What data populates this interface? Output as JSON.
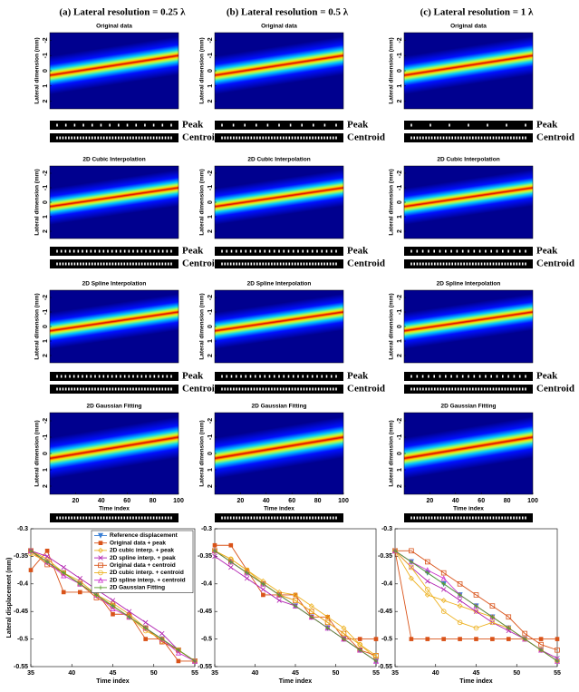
{
  "columns": [
    {
      "header": "(a) Lateral resolution = 0.25 λ"
    },
    {
      "header": "(b) Lateral resolution = 0.5 λ"
    },
    {
      "header": "(c) Lateral resolution = 1 λ"
    }
  ],
  "panel_titles": [
    "Original data",
    "2D Cubic Interpolation",
    "2D Spline Interpolation",
    "2D Gaussian Fitting"
  ],
  "strip_labels": [
    "Peak",
    "Centroid"
  ],
  "heatmap_axes": {
    "ylabel": "Lateral dimension (mm)",
    "ylim": [
      -2.5,
      2.5
    ],
    "yticks": [
      -2,
      -1,
      0,
      1,
      2
    ],
    "xlabel": "Time index",
    "xlim": [
      0,
      100
    ],
    "xticks": [
      20,
      40,
      60,
      80,
      100
    ]
  },
  "chart_data": [
    {
      "type": "line",
      "ylabel": "Lateral displacement (mm)",
      "xlabel": "Time index",
      "legend": "top-right",
      "x": [
        35,
        37,
        39,
        41,
        43,
        45,
        47,
        49,
        51,
        53,
        55
      ],
      "xlim": [
        35,
        55
      ],
      "xticks": [
        35,
        40,
        45,
        50,
        55
      ],
      "ylim": [
        -0.55,
        -0.3
      ],
      "yticks": [
        -0.3,
        -0.35,
        -0.4,
        -0.45,
        -0.5,
        -0.55
      ],
      "series": [
        {
          "name": "Reference displacement",
          "color": "#3a7fd5",
          "marker": "v",
          "values": [
            -0.34,
            -0.36,
            -0.38,
            -0.4,
            -0.42,
            -0.44,
            -0.46,
            -0.48,
            -0.5,
            -0.52,
            -0.54
          ]
        },
        {
          "name": "Original data + peak",
          "color": "#d95319",
          "marker": "s",
          "values": [
            -0.375,
            -0.34,
            -0.415,
            -0.415,
            -0.415,
            -0.455,
            -0.455,
            -0.5,
            -0.5,
            -0.54,
            -0.54
          ]
        },
        {
          "name": "2D cubic interp. + peak",
          "color": "#edb120",
          "marker": "d",
          "values": [
            -0.34,
            -0.355,
            -0.38,
            -0.395,
            -0.42,
            -0.435,
            -0.455,
            -0.48,
            -0.505,
            -0.52,
            -0.54
          ]
        },
        {
          "name": "2D spline interp. + peak",
          "color": "#b01fb0",
          "marker": "x",
          "values": [
            -0.34,
            -0.35,
            -0.37,
            -0.39,
            -0.41,
            -0.43,
            -0.45,
            -0.47,
            -0.49,
            -0.52,
            -0.54
          ]
        },
        {
          "name": "Original data + centroid",
          "color": "#d95319",
          "marker": "S",
          "values": [
            -0.34,
            -0.365,
            -0.38,
            -0.4,
            -0.425,
            -0.44,
            -0.46,
            -0.48,
            -0.505,
            -0.52,
            -0.54
          ]
        },
        {
          "name": "2D cubic interp. + centroid",
          "color": "#edb120",
          "marker": "o",
          "values": [
            -0.345,
            -0.36,
            -0.38,
            -0.4,
            -0.42,
            -0.44,
            -0.46,
            -0.485,
            -0.5,
            -0.52,
            -0.54
          ]
        },
        {
          "name": "2D spline interp. + centroid",
          "color": "#cc33cc",
          "marker": "^",
          "values": [
            -0.34,
            -0.36,
            -0.385,
            -0.4,
            -0.42,
            -0.445,
            -0.46,
            -0.48,
            -0.5,
            -0.525,
            -0.54
          ]
        },
        {
          "name": "2D Gaussian Fitting",
          "color": "#5a9e2a",
          "marker": "+",
          "values": [
            -0.34,
            -0.36,
            -0.38,
            -0.4,
            -0.42,
            -0.44,
            -0.46,
            -0.48,
            -0.5,
            -0.52,
            -0.54
          ]
        }
      ]
    },
    {
      "type": "line",
      "xlabel": "Time index",
      "x": [
        35,
        37,
        39,
        41,
        43,
        45,
        47,
        49,
        51,
        53,
        55
      ],
      "xlim": [
        35,
        55
      ],
      "xticks": [
        35,
        40,
        45,
        50,
        55
      ],
      "ylim": [
        -0.55,
        -0.3
      ],
      "yticks": [
        -0.3,
        -0.35,
        -0.4,
        -0.45,
        -0.5,
        -0.55
      ],
      "series": [
        {
          "color": "#3a7fd5",
          "marker": "v",
          "values": [
            -0.34,
            -0.36,
            -0.38,
            -0.4,
            -0.42,
            -0.44,
            -0.46,
            -0.48,
            -0.5,
            -0.52,
            -0.54
          ]
        },
        {
          "color": "#d95319",
          "marker": "s",
          "values": [
            -0.33,
            -0.33,
            -0.375,
            -0.42,
            -0.42,
            -0.42,
            -0.46,
            -0.46,
            -0.5,
            -0.5,
            -0.5
          ]
        },
        {
          "color": "#edb120",
          "marker": "d",
          "values": [
            -0.34,
            -0.355,
            -0.375,
            -0.395,
            -0.415,
            -0.42,
            -0.44,
            -0.46,
            -0.48,
            -0.51,
            -0.535
          ]
        },
        {
          "color": "#b01fb0",
          "marker": "x",
          "values": [
            -0.35,
            -0.37,
            -0.39,
            -0.41,
            -0.43,
            -0.44,
            -0.46,
            -0.48,
            -0.5,
            -0.52,
            -0.54
          ]
        },
        {
          "color": "#d95319",
          "marker": "S",
          "values": [
            -0.34,
            -0.36,
            -0.38,
            -0.4,
            -0.42,
            -0.43,
            -0.45,
            -0.47,
            -0.49,
            -0.52,
            -0.53
          ]
        },
        {
          "color": "#edb120",
          "marker": "o",
          "values": [
            -0.34,
            -0.355,
            -0.375,
            -0.4,
            -0.42,
            -0.43,
            -0.45,
            -0.47,
            -0.49,
            -0.51,
            -0.53
          ]
        },
        {
          "color": "#cc33cc",
          "marker": "^",
          "values": [
            -0.34,
            -0.36,
            -0.38,
            -0.4,
            -0.42,
            -0.44,
            -0.46,
            -0.48,
            -0.5,
            -0.52,
            -0.54
          ]
        },
        {
          "color": "#5a9e2a",
          "marker": "+",
          "values": [
            -0.34,
            -0.36,
            -0.38,
            -0.4,
            -0.42,
            -0.44,
            -0.46,
            -0.48,
            -0.5,
            -0.52,
            -0.54
          ]
        }
      ]
    },
    {
      "type": "line",
      "xlabel": "Time index",
      "x": [
        35,
        37,
        39,
        41,
        43,
        45,
        47,
        49,
        51,
        53,
        55
      ],
      "xlim": [
        35,
        55
      ],
      "xticks": [
        35,
        40,
        45,
        50,
        55
      ],
      "ylim": [
        -0.55,
        -0.3
      ],
      "yticks": [
        -0.3,
        -0.35,
        -0.4,
        -0.45,
        -0.5,
        -0.55
      ],
      "series": [
        {
          "color": "#3a7fd5",
          "marker": "v",
          "values": [
            -0.34,
            -0.36,
            -0.38,
            -0.4,
            -0.42,
            -0.44,
            -0.46,
            -0.48,
            -0.5,
            -0.52,
            -0.54
          ]
        },
        {
          "color": "#d95319",
          "marker": "s",
          "values": [
            -0.34,
            -0.5,
            -0.5,
            -0.5,
            -0.5,
            -0.5,
            -0.5,
            -0.5,
            -0.5,
            -0.5,
            -0.5
          ]
        },
        {
          "color": "#edb120",
          "marker": "d",
          "values": [
            -0.34,
            -0.39,
            -0.42,
            -0.43,
            -0.44,
            -0.45,
            -0.46,
            -0.48,
            -0.5,
            -0.52,
            -0.54
          ]
        },
        {
          "color": "#b01fb0",
          "marker": "x",
          "values": [
            -0.34,
            -0.37,
            -0.395,
            -0.41,
            -0.43,
            -0.45,
            -0.47,
            -0.485,
            -0.5,
            -0.52,
            -0.535
          ]
        },
        {
          "color": "#d95319",
          "marker": "S",
          "values": [
            -0.34,
            -0.34,
            -0.36,
            -0.38,
            -0.4,
            -0.42,
            -0.44,
            -0.46,
            -0.49,
            -0.51,
            -0.52
          ]
        },
        {
          "color": "#edb120",
          "marker": "o",
          "values": [
            -0.34,
            -0.37,
            -0.41,
            -0.45,
            -0.47,
            -0.48,
            -0.47,
            -0.48,
            -0.5,
            -0.52,
            -0.54
          ]
        },
        {
          "color": "#cc33cc",
          "marker": "^",
          "values": [
            -0.34,
            -0.36,
            -0.375,
            -0.39,
            -0.42,
            -0.44,
            -0.46,
            -0.48,
            -0.5,
            -0.52,
            -0.54
          ]
        },
        {
          "color": "#5a9e2a",
          "marker": "+",
          "values": [
            -0.34,
            -0.36,
            -0.38,
            -0.4,
            -0.42,
            -0.44,
            -0.46,
            -0.48,
            -0.5,
            -0.52,
            -0.54
          ]
        }
      ]
    }
  ]
}
